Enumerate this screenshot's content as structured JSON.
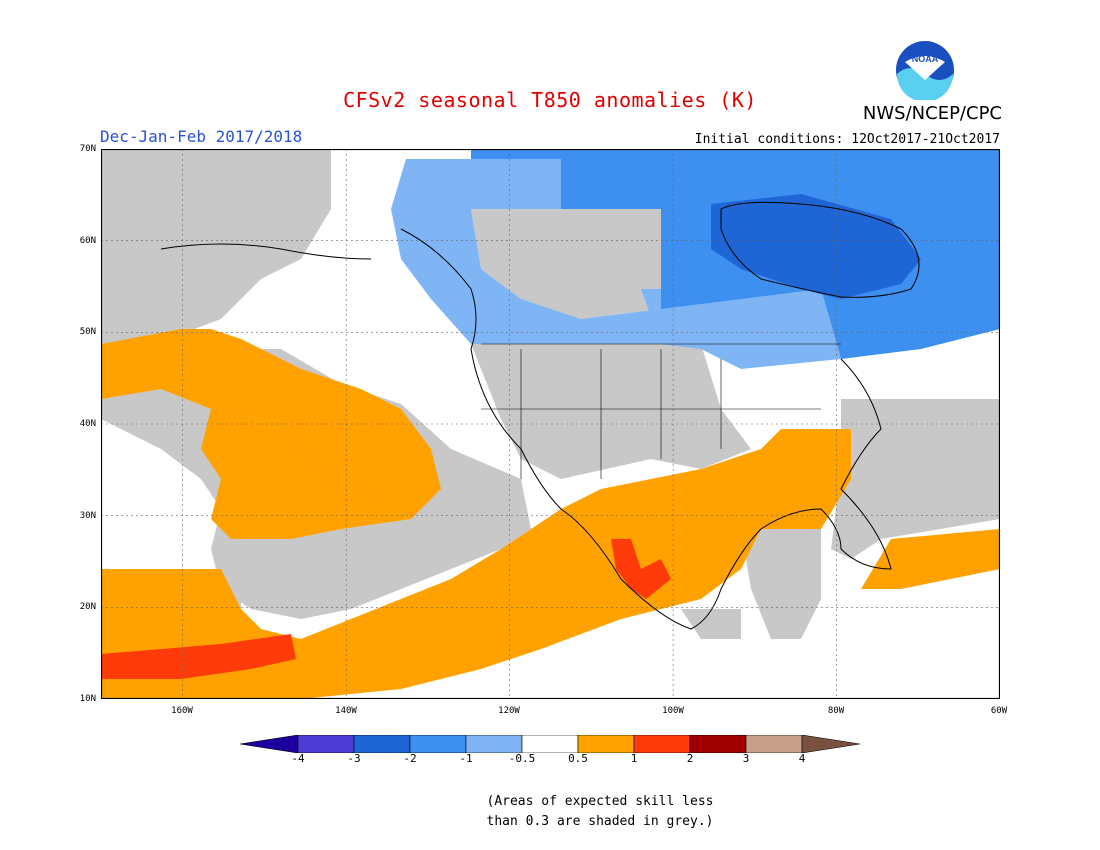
{
  "header": {
    "title": "CFSv2 seasonal T850 anomalies (K)",
    "period": "Dec-Jan-Feb 2017/2018",
    "initial_conditions": "Initial conditions: 12Oct2017-21Oct2017",
    "agency": "NWS/NCEP/CPC",
    "logo_text": "NOAA"
  },
  "map": {
    "projection": "lat-lon",
    "lat_range": [
      10,
      70
    ],
    "lon_range": [
      -170,
      -60
    ],
    "lat_labels": [
      "70N",
      "60N",
      "50N",
      "40N",
      "30N",
      "20N",
      "10N"
    ],
    "lon_labels": [
      "160W",
      "140W",
      "120W",
      "100W",
      "80W",
      "60W"
    ],
    "gridlines": "dotted",
    "regions": [
      {
        "name": "Hudson Bay / Eastern Canada",
        "category": "-3 to -2",
        "color": "#1e66d6"
      },
      {
        "name": "Central & Northern Canada",
        "category": "-2 to -1",
        "color": "#3d8ff0"
      },
      {
        "name": "Western Canada fringe",
        "category": "-1 to -0.5",
        "color": "#7fb5f5"
      },
      {
        "name": "Southeast US / Mexico / Pacific",
        "category": "0.5 to 1",
        "color": "#ffa200"
      },
      {
        "name": "Central Mexico / near Hawaii",
        "category": "1 to 2",
        "color": "#ff3b0a"
      },
      {
        "name": "Low skill areas",
        "category": "skill < 0.3",
        "color": "#c8c8c8"
      }
    ]
  },
  "colorbar": {
    "labels": [
      "-4",
      "-3",
      "-2",
      "-1",
      "-0.5",
      "0.5",
      "1",
      "2",
      "3",
      "4"
    ],
    "colors": [
      "#1c00a0",
      "#4d3dd6",
      "#1e66d6",
      "#3d8ff0",
      "#7fb5f5",
      "#ffffff",
      "#ffa200",
      "#ff3b0a",
      "#a00000",
      "#c8a08a",
      "#7a5040"
    ]
  },
  "footnote": {
    "line1": "(Areas of expected skill less",
    "line2": "than 0.3 are shaded in grey.)"
  }
}
